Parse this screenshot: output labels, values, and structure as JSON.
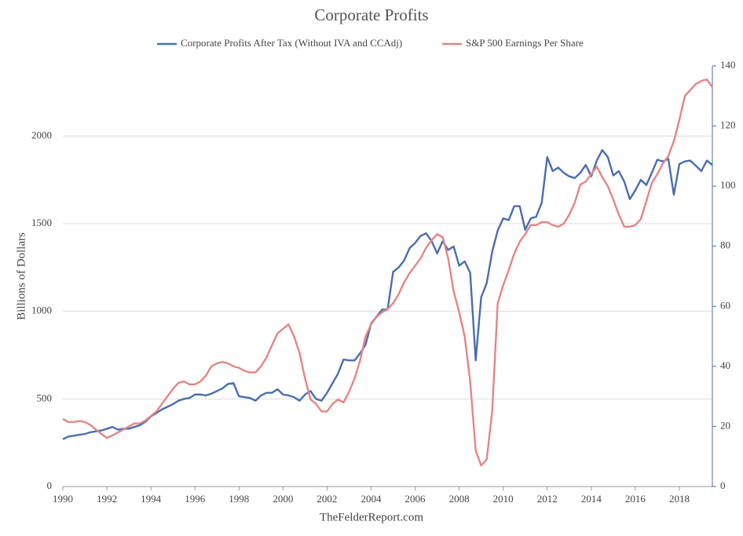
{
  "chart_data": {
    "type": "line",
    "title": "Corporate Profits",
    "ylabel": "Billions of Dollars",
    "source": "TheFelderReport.com",
    "x": [
      1990,
      1990.25,
      1990.5,
      1990.75,
      1991,
      1991.25,
      1991.5,
      1991.75,
      1992,
      1992.25,
      1992.5,
      1992.75,
      1993,
      1993.25,
      1993.5,
      1993.75,
      1994,
      1994.25,
      1994.5,
      1994.75,
      1995,
      1995.25,
      1995.5,
      1995.75,
      1996,
      1996.25,
      1996.5,
      1996.75,
      1997,
      1997.25,
      1997.5,
      1997.75,
      1998,
      1998.25,
      1998.5,
      1998.75,
      1999,
      1999.25,
      1999.5,
      1999.75,
      2000,
      2000.25,
      2000.5,
      2000.75,
      2001,
      2001.25,
      2001.5,
      2001.75,
      2002,
      2002.25,
      2002.5,
      2002.75,
      2003,
      2003.25,
      2003.5,
      2003.75,
      2004,
      2004.25,
      2004.5,
      2004.75,
      2005,
      2005.25,
      2005.5,
      2005.75,
      2006,
      2006.25,
      2006.5,
      2006.75,
      2007,
      2007.25,
      2007.5,
      2007.75,
      2008,
      2008.25,
      2008.5,
      2008.75,
      2009,
      2009.25,
      2009.5,
      2009.75,
      2010,
      2010.25,
      2010.5,
      2010.75,
      2011,
      2011.25,
      2011.5,
      2011.75,
      2012,
      2012.25,
      2012.5,
      2012.75,
      2013,
      2013.25,
      2013.5,
      2013.75,
      2014,
      2014.25,
      2014.5,
      2014.75,
      2015,
      2015.25,
      2015.5,
      2015.75,
      2016,
      2016.25,
      2016.5,
      2016.75,
      2017,
      2017.25,
      2017.5,
      2017.75,
      2018,
      2018.25,
      2018.5,
      2018.75,
      2019,
      2019.25,
      2019.5
    ],
    "series": [
      {
        "name": "Corporate Profits After Tax (Without IVA and CCAdj)",
        "color": "#4a6db0",
        "values": [
          270,
          285,
          290,
          295,
          300,
          310,
          315,
          320,
          330,
          340,
          325,
          330,
          330,
          340,
          350,
          370,
          400,
          420,
          440,
          455,
          470,
          490,
          500,
          505,
          525,
          525,
          520,
          530,
          545,
          560,
          585,
          590,
          515,
          510,
          505,
          490,
          520,
          535,
          535,
          555,
          525,
          520,
          510,
          490,
          525,
          545,
          500,
          490,
          535,
          590,
          645,
          725,
          720,
          720,
          760,
          810,
          930,
          970,
          1010,
          1010,
          1225,
          1250,
          1290,
          1360,
          1390,
          1430,
          1445,
          1400,
          1330,
          1400,
          1350,
          1370,
          1260,
          1285,
          1220,
          720,
          1080,
          1160,
          1340,
          1460,
          1530,
          1520,
          1600,
          1600,
          1465,
          1530,
          1540,
          1620,
          1880,
          1800,
          1820,
          1790,
          1770,
          1760,
          1790,
          1835,
          1770,
          1860,
          1920,
          1880,
          1775,
          1800,
          1740,
          1640,
          1690,
          1750,
          1720,
          1790,
          1865,
          1855,
          1870,
          1665,
          1840,
          1855,
          1860,
          1830,
          1800,
          1860,
          1835
        ]
      },
      {
        "name": "S&P 500 Earnings Per Share",
        "color": "#e48585",
        "axis": "y2",
        "values": [
          22.5,
          21.5,
          21.5,
          21.8,
          21.5,
          20.5,
          19,
          17.5,
          16.2,
          17,
          18,
          19,
          20,
          21,
          21,
          22,
          23.5,
          25,
          27.5,
          30,
          32.5,
          34.5,
          35,
          34,
          34,
          35,
          37,
          40,
          41,
          41.5,
          41,
          40,
          39.5,
          38.5,
          38,
          38,
          40,
          43,
          47,
          51,
          52.5,
          54,
          50,
          44.5,
          36,
          29,
          27.5,
          25,
          25,
          27.5,
          29,
          28,
          31.5,
          36,
          42,
          50,
          54,
          56.5,
          58,
          59,
          61,
          64,
          68,
          71,
          73.5,
          76,
          79.5,
          82,
          84,
          83,
          76,
          65,
          58,
          50,
          35,
          12,
          7,
          9,
          25,
          61,
          67,
          72,
          77.5,
          81.5,
          84,
          87,
          87,
          88,
          88,
          87,
          86.5,
          87.5,
          90.5,
          94.5,
          100.5,
          101.5,
          104,
          106.5,
          103,
          100,
          95.5,
          90.5,
          86.5,
          86.5,
          87,
          89,
          95,
          101,
          104,
          107.5,
          110,
          115,
          122,
          130,
          132,
          134,
          135,
          135.5,
          133
        ]
      }
    ],
    "xlim": [
      1990,
      2019.5
    ],
    "xticks": [
      1990,
      1992,
      1994,
      1996,
      1998,
      2000,
      2002,
      2004,
      2006,
      2008,
      2010,
      2012,
      2014,
      2016,
      2018
    ],
    "ylim": [
      0,
      2400
    ],
    "yticks": [
      0,
      500,
      1000,
      1500,
      2000
    ],
    "y2lim": [
      0,
      140
    ],
    "y2ticks": [
      0,
      20,
      40,
      60,
      80,
      100,
      120,
      140
    ],
    "grid": true
  }
}
